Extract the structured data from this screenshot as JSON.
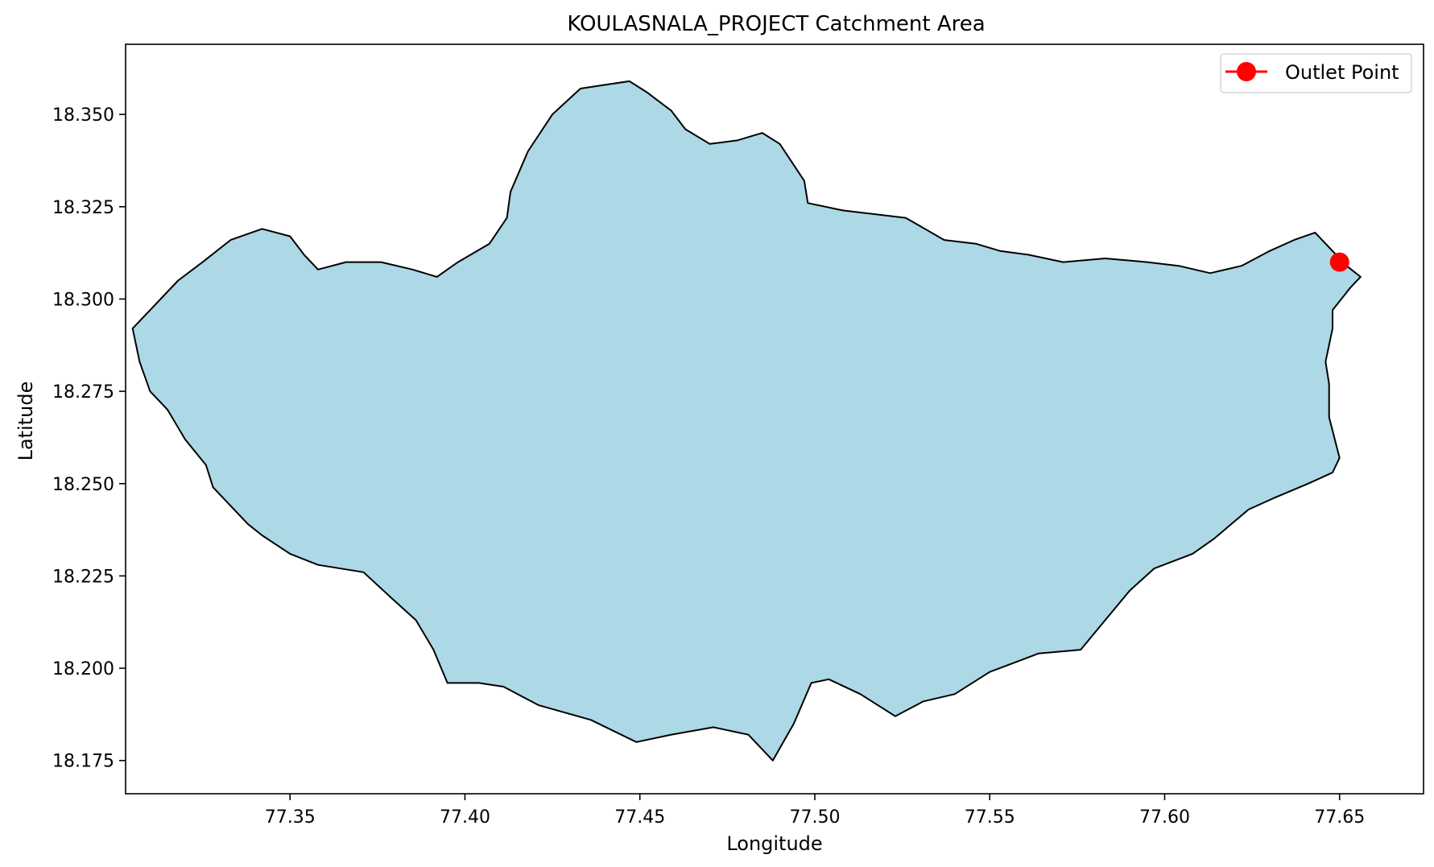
{
  "chart_data": {
    "type": "map",
    "title": "KOULASNALA_PROJECT Catchment Area",
    "xlabel": "Longitude",
    "ylabel": "Latitude",
    "xlim": [
      77.303,
      77.674
    ],
    "ylim": [
      18.166,
      18.369
    ],
    "xticks": [
      "77.35",
      "77.40",
      "77.45",
      "77.50",
      "77.55",
      "77.60",
      "77.65"
    ],
    "yticks": [
      "18.175",
      "18.200",
      "18.225",
      "18.250",
      "18.275",
      "18.300",
      "18.325",
      "18.350"
    ],
    "grid": false,
    "legend": {
      "position": "top-right",
      "entries": [
        {
          "label": "Outlet Point",
          "color": "#ff0000",
          "marker": "circle"
        }
      ]
    },
    "outlet_point": {
      "lon": 77.65,
      "lat": 18.31
    },
    "catchment": {
      "fill": "#add8e6",
      "edge": "#000000",
      "boundary": [
        [
          77.653,
          18.303
        ],
        [
          77.648,
          18.297
        ],
        [
          77.648,
          18.292
        ],
        [
          77.646,
          18.283
        ],
        [
          77.647,
          18.277
        ],
        [
          77.647,
          18.268
        ],
        [
          77.65,
          18.257
        ],
        [
          77.648,
          18.253
        ],
        [
          77.641,
          18.25
        ],
        [
          77.631,
          18.246
        ],
        [
          77.624,
          18.243
        ],
        [
          77.614,
          18.235
        ],
        [
          77.608,
          18.231
        ],
        [
          77.597,
          18.227
        ],
        [
          77.59,
          18.221
        ],
        [
          77.583,
          18.213
        ],
        [
          77.576,
          18.205
        ],
        [
          77.564,
          18.204
        ],
        [
          77.55,
          18.199
        ],
        [
          77.54,
          18.193
        ],
        [
          77.531,
          18.191
        ],
        [
          77.523,
          18.187
        ],
        [
          77.513,
          18.193
        ],
        [
          77.504,
          18.197
        ],
        [
          77.499,
          18.196
        ],
        [
          77.494,
          18.185
        ],
        [
          77.488,
          18.175
        ],
        [
          77.481,
          18.182
        ],
        [
          77.471,
          18.184
        ],
        [
          77.459,
          18.182
        ],
        [
          77.449,
          18.18
        ],
        [
          77.436,
          18.186
        ],
        [
          77.421,
          18.19
        ],
        [
          77.411,
          18.195
        ],
        [
          77.404,
          18.196
        ],
        [
          77.395,
          18.196
        ],
        [
          77.391,
          18.205
        ],
        [
          77.386,
          18.213
        ],
        [
          77.379,
          18.219
        ],
        [
          77.371,
          18.226
        ],
        [
          77.358,
          18.228
        ],
        [
          77.35,
          18.231
        ],
        [
          77.342,
          18.236
        ],
        [
          77.338,
          18.239
        ],
        [
          77.332,
          18.245
        ],
        [
          77.328,
          18.249
        ],
        [
          77.326,
          18.255
        ],
        [
          77.32,
          18.262
        ],
        [
          77.315,
          18.27
        ],
        [
          77.31,
          18.275
        ],
        [
          77.307,
          18.283
        ],
        [
          77.305,
          18.292
        ],
        [
          77.31,
          18.297
        ],
        [
          77.318,
          18.305
        ],
        [
          77.325,
          18.31
        ],
        [
          77.333,
          18.316
        ],
        [
          77.342,
          18.319
        ],
        [
          77.35,
          18.317
        ],
        [
          77.354,
          18.312
        ],
        [
          77.358,
          18.308
        ],
        [
          77.366,
          18.31
        ],
        [
          77.376,
          18.31
        ],
        [
          77.385,
          18.308
        ],
        [
          77.392,
          18.306
        ],
        [
          77.398,
          18.31
        ],
        [
          77.407,
          18.315
        ],
        [
          77.412,
          18.322
        ],
        [
          77.413,
          18.329
        ],
        [
          77.418,
          18.34
        ],
        [
          77.425,
          18.35
        ],
        [
          77.433,
          18.357
        ],
        [
          77.44,
          18.358
        ],
        [
          77.447,
          18.359
        ],
        [
          77.452,
          18.356
        ],
        [
          77.459,
          18.351
        ],
        [
          77.463,
          18.346
        ],
        [
          77.47,
          18.342
        ],
        [
          77.478,
          18.343
        ],
        [
          77.485,
          18.345
        ],
        [
          77.49,
          18.342
        ],
        [
          77.497,
          18.332
        ],
        [
          77.498,
          18.326
        ],
        [
          77.508,
          18.324
        ],
        [
          77.517,
          18.323
        ],
        [
          77.526,
          18.322
        ],
        [
          77.537,
          18.316
        ],
        [
          77.546,
          18.315
        ],
        [
          77.553,
          18.313
        ],
        [
          77.561,
          18.312
        ],
        [
          77.571,
          18.31
        ],
        [
          77.583,
          18.311
        ],
        [
          77.595,
          18.31
        ],
        [
          77.604,
          18.309
        ],
        [
          77.613,
          18.307
        ],
        [
          77.622,
          18.309
        ],
        [
          77.63,
          18.313
        ],
        [
          77.637,
          18.316
        ],
        [
          77.643,
          18.318
        ],
        [
          77.648,
          18.313
        ],
        [
          77.652,
          18.309
        ],
        [
          77.656,
          18.306
        ]
      ]
    }
  }
}
